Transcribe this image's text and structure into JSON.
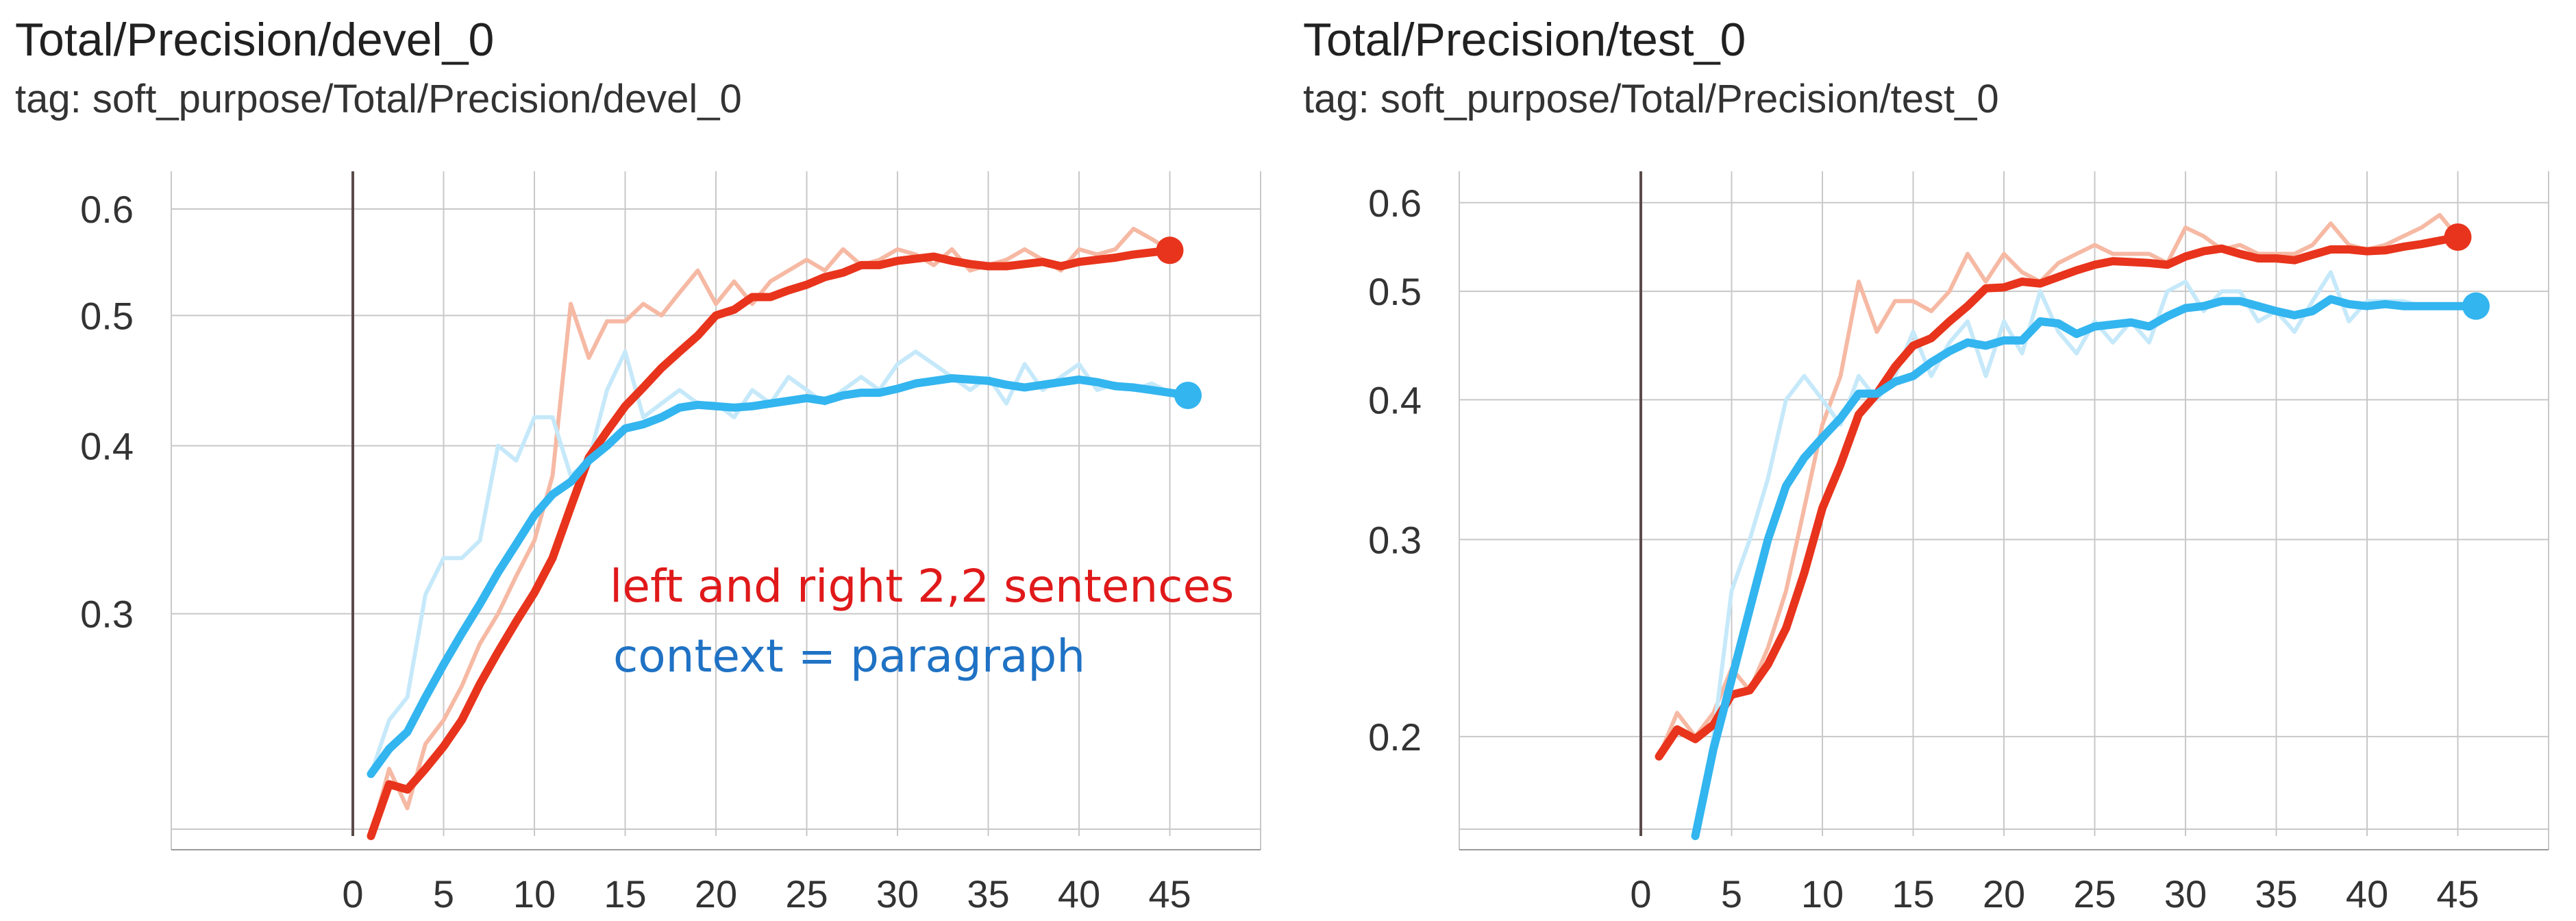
{
  "chart_data": [
    {
      "type": "line",
      "title": "Total/Precision/devel_0",
      "subtitle": "tag: soft_purpose/Total/Precision/devel_0",
      "y_scale": "log",
      "xlim": [
        -10,
        50
      ],
      "ylim": [
        0.205,
        0.64
      ],
      "x_ticks": [
        "0",
        "5",
        "10",
        "15",
        "20",
        "25",
        "30",
        "35",
        "40",
        "45"
      ],
      "y_ticks": [
        "0.3",
        "0.4",
        "0.5",
        "0.6"
      ],
      "y_tick_values": [
        0.3,
        0.4,
        0.5,
        0.6
      ],
      "grid": true,
      "annotations": [
        "left and right 2,2 sentences",
        "context = paragraph"
      ],
      "series": [
        {
          "color": "#e8341c",
          "raw_color": "#f6b9a4",
          "x": [
            1,
            2,
            3,
            4,
            5,
            6,
            7,
            8,
            9,
            10,
            11,
            12,
            13,
            14,
            15,
            16,
            17,
            18,
            19,
            20,
            21,
            22,
            23,
            24,
            25,
            26,
            27,
            28,
            29,
            30,
            31,
            32,
            33,
            34,
            35,
            36,
            37,
            38,
            39,
            40,
            41,
            42,
            43,
            44,
            45
          ],
          "values": [
            0.205,
            0.224,
            0.222,
            0.23,
            0.239,
            0.25,
            0.266,
            0.281,
            0.296,
            0.311,
            0.33,
            0.36,
            0.392,
            0.41,
            0.428,
            0.442,
            0.457,
            0.47,
            0.483,
            0.5,
            0.505,
            0.516,
            0.516,
            0.522,
            0.527,
            0.534,
            0.538,
            0.545,
            0.545,
            0.549,
            0.551,
            0.553,
            0.549,
            0.546,
            0.544,
            0.544,
            0.546,
            0.548,
            0.544,
            0.548,
            0.55,
            0.552,
            0.555,
            0.557,
            0.559
          ],
          "raw_values": [
            0.205,
            0.23,
            0.215,
            0.24,
            0.25,
            0.265,
            0.285,
            0.3,
            0.32,
            0.34,
            0.38,
            0.51,
            0.465,
            0.495,
            0.495,
            0.51,
            0.5,
            0.52,
            0.54,
            0.51,
            0.53,
            0.51,
            0.53,
            0.54,
            0.55,
            0.54,
            0.56,
            0.545,
            0.55,
            0.56,
            0.555,
            0.545,
            0.56,
            0.54,
            0.545,
            0.55,
            0.56,
            0.55,
            0.54,
            0.56,
            0.555,
            0.56,
            0.58,
            0.57,
            0.559
          ]
        },
        {
          "color": "#33b5ef",
          "raw_color": "#c6e9fa",
          "x": [
            1,
            2,
            3,
            4,
            5,
            6,
            7,
            8,
            9,
            10,
            11,
            12,
            13,
            14,
            15,
            16,
            17,
            18,
            19,
            20,
            21,
            22,
            23,
            24,
            25,
            26,
            27,
            28,
            29,
            30,
            31,
            32,
            33,
            34,
            35,
            36,
            37,
            38,
            39,
            40,
            41,
            42,
            43,
            44,
            45,
            46
          ],
          "values": [
            0.228,
            0.238,
            0.245,
            0.26,
            0.275,
            0.29,
            0.305,
            0.322,
            0.338,
            0.355,
            0.368,
            0.376,
            0.39,
            0.4,
            0.412,
            0.415,
            0.42,
            0.427,
            0.429,
            0.428,
            0.427,
            0.428,
            0.43,
            0.432,
            0.434,
            0.432,
            0.436,
            0.438,
            0.438,
            0.441,
            0.445,
            0.447,
            0.449,
            0.448,
            0.447,
            0.444,
            0.442,
            0.444,
            0.446,
            0.448,
            0.446,
            0.443,
            0.442,
            0.44,
            0.438,
            0.436
          ],
          "raw_values": [
            0.228,
            0.25,
            0.26,
            0.31,
            0.33,
            0.33,
            0.34,
            0.4,
            0.39,
            0.42,
            0.42,
            0.38,
            0.39,
            0.44,
            0.47,
            0.42,
            0.43,
            0.44,
            0.43,
            0.43,
            0.42,
            0.44,
            0.43,
            0.45,
            0.44,
            0.43,
            0.44,
            0.45,
            0.44,
            0.46,
            0.47,
            0.46,
            0.45,
            0.44,
            0.45,
            0.43,
            0.46,
            0.44,
            0.45,
            0.46,
            0.44,
            0.445,
            0.44,
            0.445,
            0.438,
            0.436
          ]
        }
      ]
    },
    {
      "type": "line",
      "title": "Total/Precision/test_0",
      "subtitle": "tag: soft_purpose/Total/Precision/test_0",
      "y_scale": "log",
      "xlim": [
        -10,
        50
      ],
      "ylim": [
        0.163,
        0.64
      ],
      "x_ticks": [
        "0",
        "5",
        "10",
        "15",
        "20",
        "25",
        "30",
        "35",
        "40",
        "45"
      ],
      "y_ticks": [
        "0.2",
        "0.3",
        "0.4",
        "0.5",
        "0.6"
      ],
      "y_tick_values": [
        0.2,
        0.3,
        0.4,
        0.5,
        0.6
      ],
      "grid": true,
      "series": [
        {
          "color": "#e8341c",
          "raw_color": "#f6b9a4",
          "x": [
            1,
            2,
            3,
            4,
            5,
            6,
            7,
            8,
            9,
            10,
            11,
            12,
            13,
            14,
            15,
            16,
            17,
            18,
            19,
            20,
            21,
            22,
            23,
            24,
            25,
            26,
            27,
            28,
            29,
            30,
            31,
            32,
            33,
            34,
            35,
            36,
            37,
            38,
            39,
            40,
            41,
            42,
            43,
            44,
            45
          ],
          "values": [
            0.192,
            0.203,
            0.199,
            0.205,
            0.218,
            0.22,
            0.232,
            0.25,
            0.28,
            0.32,
            0.35,
            0.388,
            0.405,
            0.428,
            0.447,
            0.454,
            0.47,
            0.485,
            0.503,
            0.504,
            0.51,
            0.508,
            0.515,
            0.522,
            0.528,
            0.532,
            0.531,
            0.53,
            0.528,
            0.537,
            0.543,
            0.546,
            0.54,
            0.535,
            0.535,
            0.533,
            0.539,
            0.545,
            0.545,
            0.543,
            0.544,
            0.548,
            0.551,
            0.555,
            0.559
          ],
          "raw_values": [
            0.192,
            0.21,
            0.2,
            0.21,
            0.23,
            0.22,
            0.24,
            0.27,
            0.32,
            0.38,
            0.42,
            0.51,
            0.46,
            0.49,
            0.49,
            0.48,
            0.5,
            0.54,
            0.51,
            0.54,
            0.52,
            0.51,
            0.53,
            0.54,
            0.55,
            0.54,
            0.54,
            0.54,
            0.53,
            0.57,
            0.56,
            0.545,
            0.55,
            0.54,
            0.54,
            0.54,
            0.55,
            0.575,
            0.55,
            0.545,
            0.55,
            0.56,
            0.57,
            0.585,
            0.559
          ]
        },
        {
          "color": "#33b5ef",
          "raw_color": "#c6e9fa",
          "x": [
            3,
            4,
            5,
            6,
            7,
            8,
            9,
            10,
            11,
            12,
            13,
            14,
            15,
            16,
            17,
            18,
            19,
            20,
            21,
            22,
            23,
            24,
            25,
            26,
            27,
            28,
            29,
            30,
            31,
            32,
            33,
            34,
            35,
            36,
            37,
            38,
            39,
            40,
            41,
            42,
            43,
            44,
            45,
            46
          ],
          "values": [
            0.163,
            0.195,
            0.225,
            0.26,
            0.3,
            0.335,
            0.355,
            0.37,
            0.385,
            0.405,
            0.405,
            0.415,
            0.42,
            0.432,
            0.442,
            0.45,
            0.447,
            0.452,
            0.452,
            0.47,
            0.468,
            0.458,
            0.465,
            0.467,
            0.469,
            0.465,
            0.475,
            0.483,
            0.485,
            0.49,
            0.49,
            0.485,
            0.48,
            0.476,
            0.48,
            0.492,
            0.487,
            0.485,
            0.487,
            0.485,
            0.485,
            0.485,
            0.485,
            0.485
          ],
          "raw_values": [
            0.163,
            0.2,
            0.27,
            0.3,
            0.34,
            0.4,
            0.42,
            0.4,
            0.38,
            0.42,
            0.4,
            0.42,
            0.46,
            0.42,
            0.45,
            0.47,
            0.42,
            0.47,
            0.44,
            0.5,
            0.46,
            0.44,
            0.47,
            0.45,
            0.47,
            0.45,
            0.5,
            0.51,
            0.48,
            0.5,
            0.5,
            0.47,
            0.48,
            0.46,
            0.49,
            0.52,
            0.47,
            0.49,
            0.49,
            0.49,
            0.485,
            0.485,
            0.485,
            0.485
          ]
        }
      ]
    }
  ]
}
